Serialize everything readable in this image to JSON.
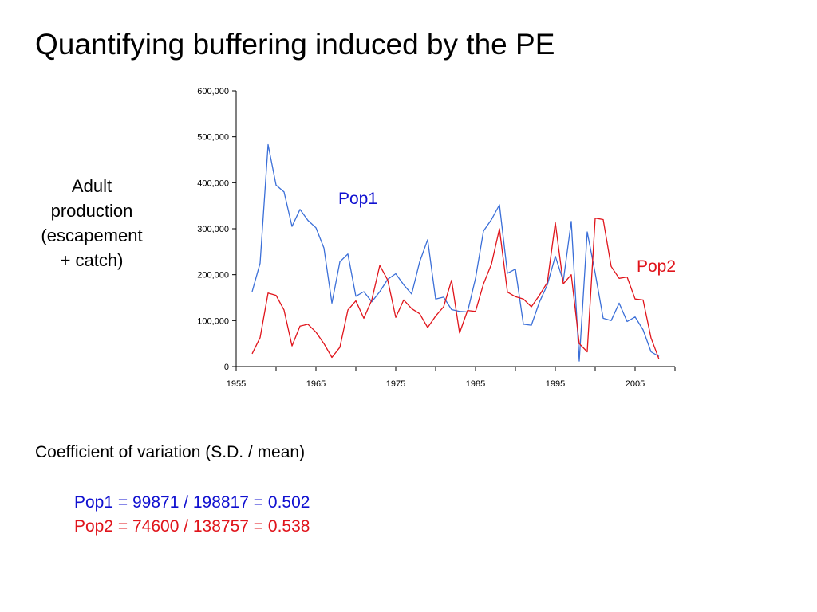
{
  "slide": {
    "title": "Quantifying buffering induced by the PE",
    "ylabel_lines": [
      "Adult",
      "production",
      "(escapement",
      "+ catch)"
    ],
    "cv_heading": "Coefficient of variation (S.D. / mean)",
    "cv_pop1": "Pop1 = 99871 / 198817 = 0.502",
    "cv_pop2": "Pop2 = 74600 / 138757 = 0.538",
    "colors": {
      "pop1": "#3b6fd8",
      "pop2": "#e0141b",
      "pop1_text": "#1010d0",
      "pop2_text": "#e0141b"
    }
  },
  "chart_data": {
    "type": "line",
    "title": "",
    "xlabel": "",
    "ylabel": "",
    "xlim": [
      1955,
      2010
    ],
    "ylim": [
      0,
      600000
    ],
    "x_ticks": [
      1955,
      1965,
      1975,
      1985,
      1995,
      2005
    ],
    "x_tick_labels": [
      "1955",
      "1965",
      "1975",
      "1985",
      "1995",
      "2005"
    ],
    "y_ticks": [
      0,
      100000,
      200000,
      300000,
      400000,
      500000,
      600000
    ],
    "y_tick_labels": [
      "0",
      "100,000",
      "200,000",
      "300,000",
      "400,000",
      "500,000",
      "600,000"
    ],
    "grid": false,
    "legend": "inline labels",
    "x": [
      1957,
      1958,
      1959,
      1960,
      1961,
      1962,
      1963,
      1964,
      1965,
      1966,
      1967,
      1968,
      1969,
      1970,
      1971,
      1972,
      1973,
      1974,
      1975,
      1976,
      1977,
      1978,
      1979,
      1980,
      1981,
      1982,
      1983,
      1984,
      1985,
      1986,
      1987,
      1988,
      1989,
      1990,
      1991,
      1992,
      1993,
      1994,
      1995,
      1996,
      1997,
      1998,
      1999,
      2000,
      2001,
      2002,
      2003,
      2004,
      2005,
      2006,
      2007,
      2008
    ],
    "series": [
      {
        "name": "Pop1",
        "color": "#3b6fd8",
        "values": [
          163000,
          225000,
          483000,
          395000,
          380000,
          305000,
          342000,
          318000,
          302000,
          258000,
          138000,
          228000,
          245000,
          153000,
          163000,
          141000,
          163000,
          190000,
          202000,
          178000,
          158000,
          228000,
          276000,
          147000,
          151000,
          124000,
          120000,
          119000,
          192000,
          295000,
          320000,
          352000,
          203000,
          212000,
          92000,
          90000,
          140000,
          178000,
          240000,
          186000,
          316000,
          12000,
          293000,
          203000,
          105000,
          100000,
          138000,
          98000,
          108000,
          80000,
          32000,
          22000
        ]
      },
      {
        "name": "Pop2",
        "color": "#e0141b",
        "values": [
          28000,
          63000,
          160000,
          155000,
          123000,
          45000,
          88000,
          92000,
          75000,
          50000,
          20000,
          42000,
          123000,
          143000,
          105000,
          145000,
          220000,
          188000,
          107000,
          145000,
          126000,
          115000,
          85000,
          110000,
          130000,
          188000,
          73000,
          122000,
          120000,
          180000,
          223000,
          300000,
          162000,
          152000,
          147000,
          130000,
          155000,
          183000,
          313000,
          180000,
          200000,
          50000,
          32000,
          323000,
          320000,
          218000,
          192000,
          195000,
          147000,
          145000,
          62000,
          16000
        ]
      }
    ],
    "annotations": [
      "Pop1",
      "Pop2"
    ]
  }
}
